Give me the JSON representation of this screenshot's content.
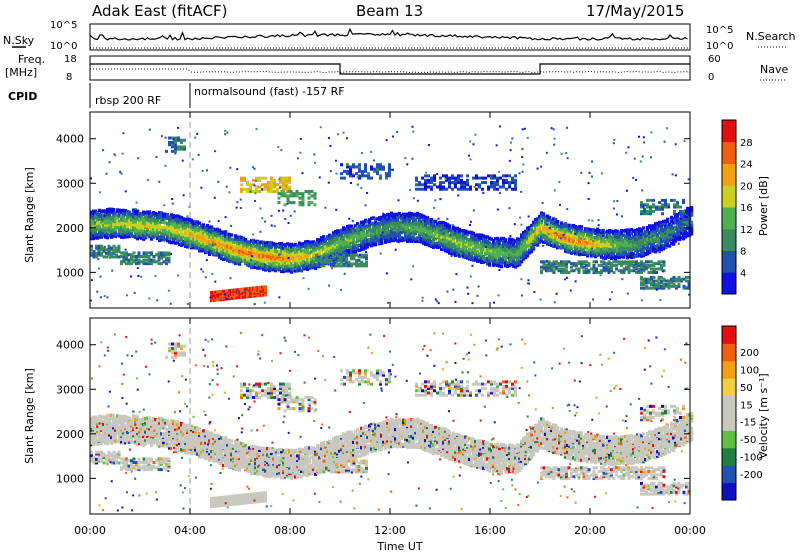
{
  "header": {
    "station": "Adak East (fitACF)",
    "beam": "Beam 13",
    "date": "17/May/2015"
  },
  "strip_labels": {
    "nsky": "N.Sky",
    "freq_line1": "Freq.",
    "freq_line2": "[MHz]",
    "cpid": "CPID",
    "nsearch": "N.Search",
    "nave": "Nave",
    "nsky_ticks": [
      "10^5",
      "10^0"
    ],
    "nsearch_ticks": [
      "10^5",
      "10^0"
    ],
    "freq_ticks": [
      "18",
      "8"
    ],
    "nave_ticks": [
      "60",
      "0"
    ]
  },
  "cpid": [
    {
      "label": "rbsp 200 RF",
      "start_h": 0,
      "end_h": 4
    },
    {
      "label": "normalsound (fast) -157 RF",
      "start_h": 4,
      "end_h": 24
    }
  ],
  "colors": {
    "power_scale": [
      "#1010e0",
      "#2050b0",
      "#3a8a60",
      "#50b050",
      "#c8d020",
      "#f0a010",
      "#f06010",
      "#e01010"
    ],
    "velocity_scale": [
      "#e01010",
      "#f06010",
      "#f0a010",
      "#f0d040",
      "#c8c8c0",
      "#c8c8c0",
      "#60c040",
      "#208040",
      "#2050b0",
      "#1010c0"
    ]
  },
  "chart_data": [
    {
      "type": "heatmap",
      "name": "Power",
      "xlabel": "",
      "ylabel": "Slant Range [km]",
      "x_range_h": [
        0,
        24
      ],
      "ylim": [
        200,
        4600
      ],
      "yticks": [
        1000,
        2000,
        3000,
        4000
      ],
      "colorbar": {
        "label": "Power [dB]",
        "ticks": [
          4,
          8,
          12,
          16,
          20,
          24,
          28
        ],
        "range": [
          0,
          32
        ]
      },
      "echo_bands": [
        {
          "x": [
            0,
            1,
            2,
            3,
            4,
            5,
            6,
            7,
            8,
            9,
            10,
            11,
            12,
            13,
            14,
            15,
            16,
            17,
            18,
            19,
            20,
            21,
            22,
            23,
            24
          ],
          "y": [
            2100,
            2150,
            2100,
            2050,
            1900,
            1700,
            1500,
            1400,
            1350,
            1450,
            1700,
            1900,
            2050,
            2050,
            1850,
            1650,
            1500,
            1450,
            2050,
            1800,
            1700,
            1650,
            1700,
            1900,
            2200
          ],
          "power": [
            16,
            18,
            20,
            18,
            22,
            24,
            26,
            26,
            24,
            20,
            16,
            14,
            12,
            14,
            16,
            18,
            16,
            14,
            22,
            26,
            24,
            16,
            12,
            10,
            8
          ]
        }
      ]
    },
    {
      "type": "heatmap",
      "name": "Velocity",
      "xlabel": "Time UT",
      "ylabel": "Slant Range [km]",
      "x_range_h": [
        0,
        24
      ],
      "ylim": [
        200,
        4600
      ],
      "yticks": [
        1000,
        2000,
        3000,
        4000
      ],
      "xticks": [
        "00:00",
        "04:00",
        "08:00",
        "12:00",
        "16:00",
        "20:00",
        "00:00"
      ],
      "colorbar": {
        "label": "Velocity [m s⁻¹]",
        "ticks": [
          200,
          100,
          50,
          15,
          -15,
          -50,
          -100,
          -200
        ]
      }
    }
  ]
}
